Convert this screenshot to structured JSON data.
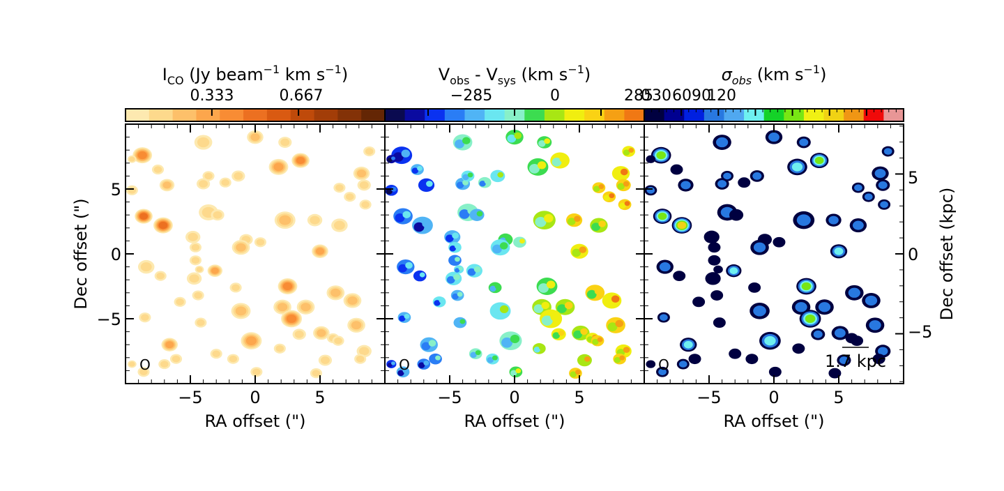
{
  "chart_data": [
    {
      "type": "heatmap",
      "panel": "moment0",
      "title": "I",
      "title_sub": "CO",
      "title_rest": " (Jy beam",
      "title_sup1": "−1",
      "title_rest2": " km s",
      "title_sup2": "−1",
      "title_end": ")",
      "colorbar": {
        "range": [
          0,
          1.0
        ],
        "ticks": [
          0.333,
          0.667
        ],
        "tick_labels": [
          "0.333",
          "0.667"
        ]
      },
      "colors": [
        "#fde9b0",
        "#fdd98c",
        "#fdc06a",
        "#fca64c",
        "#f88c34",
        "#ec7021",
        "#d95a12",
        "#bf4a0a",
        "#a23d08",
        "#833207",
        "#642605"
      ],
      "xlabel": "RA offset (\")",
      "ylabel": "Dec offset (\")",
      "xlim": [
        -10,
        10
      ],
      "ylim": [
        -10,
        10
      ],
      "xticks": [
        -5,
        0,
        5
      ],
      "xtick_labels": [
        "−5",
        "0",
        "5"
      ],
      "yticks": [
        -5,
        0,
        5
      ],
      "ytick_labels": [
        "−5",
        "0",
        "5"
      ],
      "clumps": [
        [
          -8.7,
          7.6,
          0.55,
          0.45
        ],
        [
          -8.6,
          2.9,
          0.5,
          0.55
        ],
        [
          -7.1,
          2.2,
          0.55,
          0.6
        ],
        [
          -6.8,
          5.3,
          0.4,
          0.3
        ],
        [
          -9.5,
          4.9,
          0.3,
          0.2
        ],
        [
          -7.5,
          6.5,
          0.3,
          0.15
        ],
        [
          -4.0,
          5.4,
          0.35,
          0.2
        ],
        [
          -3.6,
          6.0,
          0.3,
          0.2
        ],
        [
          -2.3,
          5.5,
          0.3,
          0.15
        ],
        [
          -1.3,
          6.0,
          0.35,
          0.2
        ],
        [
          0.0,
          9.0,
          0.45,
          0.3
        ],
        [
          -4.0,
          8.6,
          0.5,
          0.2
        ],
        [
          2.3,
          8.6,
          0.35,
          0.2
        ],
        [
          1.8,
          6.7,
          0.55,
          0.4
        ],
        [
          3.5,
          7.2,
          0.5,
          0.45
        ],
        [
          8.2,
          6.2,
          0.45,
          0.25
        ],
        [
          8.4,
          5.3,
          0.35,
          0.2
        ],
        [
          6.5,
          5.1,
          0.3,
          0.2
        ],
        [
          8.8,
          7.9,
          0.3,
          0.2
        ],
        [
          7.3,
          4.4,
          0.3,
          0.2
        ],
        [
          -3.6,
          3.2,
          0.55,
          0.2
        ],
        [
          -2.9,
          3.0,
          0.35,
          0.15
        ],
        [
          2.3,
          2.6,
          0.6,
          0.3
        ],
        [
          4.6,
          2.6,
          0.4,
          0.2
        ],
        [
          6.5,
          2.2,
          0.45,
          0.2
        ],
        [
          8.5,
          3.8,
          0.3,
          0.2
        ],
        [
          -0.7,
          1.1,
          0.35,
          0.15
        ],
        [
          0.4,
          0.9,
          0.3,
          0.15
        ],
        [
          -4.8,
          1.3,
          0.4,
          0.15
        ],
        [
          -4.7,
          -1.9,
          0.4,
          0.15
        ],
        [
          -4.4,
          -3.2,
          0.3,
          0.15
        ],
        [
          -8.4,
          -1.0,
          0.45,
          0.2
        ],
        [
          -4.6,
          0.5,
          0.3,
          0.15
        ],
        [
          -4.6,
          -0.5,
          0.3,
          0.15
        ],
        [
          -4.3,
          -1.2,
          0.2,
          0.15
        ],
        [
          -8.5,
          -4.9,
          0.3,
          0.2
        ],
        [
          -1.1,
          0.5,
          0.5,
          0.25
        ],
        [
          5.0,
          0.2,
          0.45,
          0.35
        ],
        [
          -1.5,
          -2.6,
          0.3,
          0.15
        ],
        [
          -4.2,
          -5.3,
          0.3,
          0.15
        ],
        [
          -3.1,
          -1.3,
          0.4,
          0.35
        ],
        [
          2.1,
          -4.1,
          0.5,
          0.25
        ],
        [
          2.5,
          -2.5,
          0.55,
          0.45
        ],
        [
          3.9,
          -4.1,
          0.5,
          0.25
        ],
        [
          2.8,
          -5.0,
          0.6,
          0.5
        ],
        [
          -1.1,
          -4.4,
          0.55,
          0.3
        ],
        [
          -0.3,
          -6.7,
          0.6,
          0.4
        ],
        [
          3.4,
          -6.2,
          0.35,
          0.2
        ],
        [
          5.1,
          -6.1,
          0.45,
          0.3
        ],
        [
          6.0,
          -6.5,
          0.3,
          0.15
        ],
        [
          6.2,
          -3.0,
          0.5,
          0.25
        ],
        [
          7.5,
          -3.6,
          0.5,
          0.3
        ],
        [
          7.8,
          -5.5,
          0.5,
          0.25
        ],
        [
          6.4,
          -6.7,
          0.3,
          0.15
        ],
        [
          8.4,
          -7.5,
          0.4,
          0.2
        ],
        [
          -6.6,
          -7.0,
          0.45,
          0.35
        ],
        [
          -8.6,
          -9.1,
          0.3,
          0.2
        ],
        [
          -6.1,
          -8.1,
          0.3,
          0.15
        ],
        [
          -7.0,
          -8.5,
          0.3,
          0.2
        ],
        [
          -3.0,
          -7.7,
          0.3,
          0.15
        ],
        [
          -1.7,
          -8.1,
          0.3,
          0.15
        ],
        [
          0.1,
          -9.1,
          0.3,
          0.15
        ],
        [
          1.9,
          -7.3,
          0.3,
          0.15
        ],
        [
          5.4,
          -8.2,
          0.35,
          0.2
        ],
        [
          8.1,
          -8.1,
          0.3,
          0.15
        ],
        [
          4.7,
          -9.2,
          0.3,
          0.15
        ],
        [
          -9.5,
          7.3,
          0.2,
          0.15
        ],
        [
          -9.5,
          -8.5,
          0.2,
          0.15
        ],
        [
          -5.8,
          -3.7,
          0.3,
          0.15
        ],
        [
          -7.3,
          -1.7,
          0.3,
          0.15
        ]
      ]
    },
    {
      "type": "heatmap",
      "panel": "moment1",
      "title": "V",
      "title_sub": "obs",
      "title_rest": " - V",
      "title_sub2": "sys",
      "title_end": " (km s",
      "title_sup": "−1",
      "title_close": ")",
      "colorbar": {
        "range": [
          -427.5,
          427.5
        ],
        "ticks": [
          -285,
          0,
          285
        ],
        "tick_labels": [
          "−285",
          "0",
          "285"
        ]
      },
      "xlabel": "RA offset (\")",
      "xlim": [
        -10,
        10
      ],
      "ylim": [
        -10,
        10
      ],
      "xticks": [
        -5,
        0,
        5
      ],
      "xtick_labels": [
        "−5",
        "0",
        "5"
      ]
    },
    {
      "type": "heatmap",
      "panel": "moment2",
      "title": "σ",
      "title_sub": "obs",
      "title_end": " (km s",
      "title_sup": "−1",
      "title_close": ")",
      "colorbar": {
        "range": [
          0,
          210
        ],
        "ticks": [
          0,
          30,
          60,
          90,
          120
        ],
        "tick_labels": [
          "0",
          "30",
          "60",
          "90",
          "120"
        ]
      },
      "xlabel": "RA offset (\")",
      "ylabel_right": "Dec offset (kpc)",
      "xlim": [
        -10,
        10
      ],
      "ylim": [
        -10,
        10
      ],
      "xticks": [
        -5,
        0,
        5
      ],
      "xtick_labels": [
        "−5",
        "0",
        "5"
      ],
      "right_ylim_kpc": [
        -8.12,
        8.12
      ],
      "right_yticks": [
        -5,
        0,
        5
      ],
      "right_ytick_labels": [
        "−5",
        "0",
        "5"
      ],
      "scalebar_label": "1.7 kpc"
    }
  ],
  "beam_symbol": "O",
  "colors": {
    "velocity": [
      "#0a0a50",
      "#0a0aa0",
      "#0a32f0",
      "#2a7df5",
      "#50b4f5",
      "#6ae6f0",
      "#88f0c8",
      "#3cdc50",
      "#a8e614",
      "#f0ee10",
      "#fad214",
      "#f5a014",
      "#f07814"
    ],
    "dispersion": [
      "#000040",
      "#000090",
      "#0020e0",
      "#2878e0",
      "#50a8f0",
      "#6ef0f0",
      "#14d228",
      "#78e614",
      "#f0f014",
      "#f0d214",
      "#f09614",
      "#f00a0a",
      "#e89696"
    ]
  }
}
